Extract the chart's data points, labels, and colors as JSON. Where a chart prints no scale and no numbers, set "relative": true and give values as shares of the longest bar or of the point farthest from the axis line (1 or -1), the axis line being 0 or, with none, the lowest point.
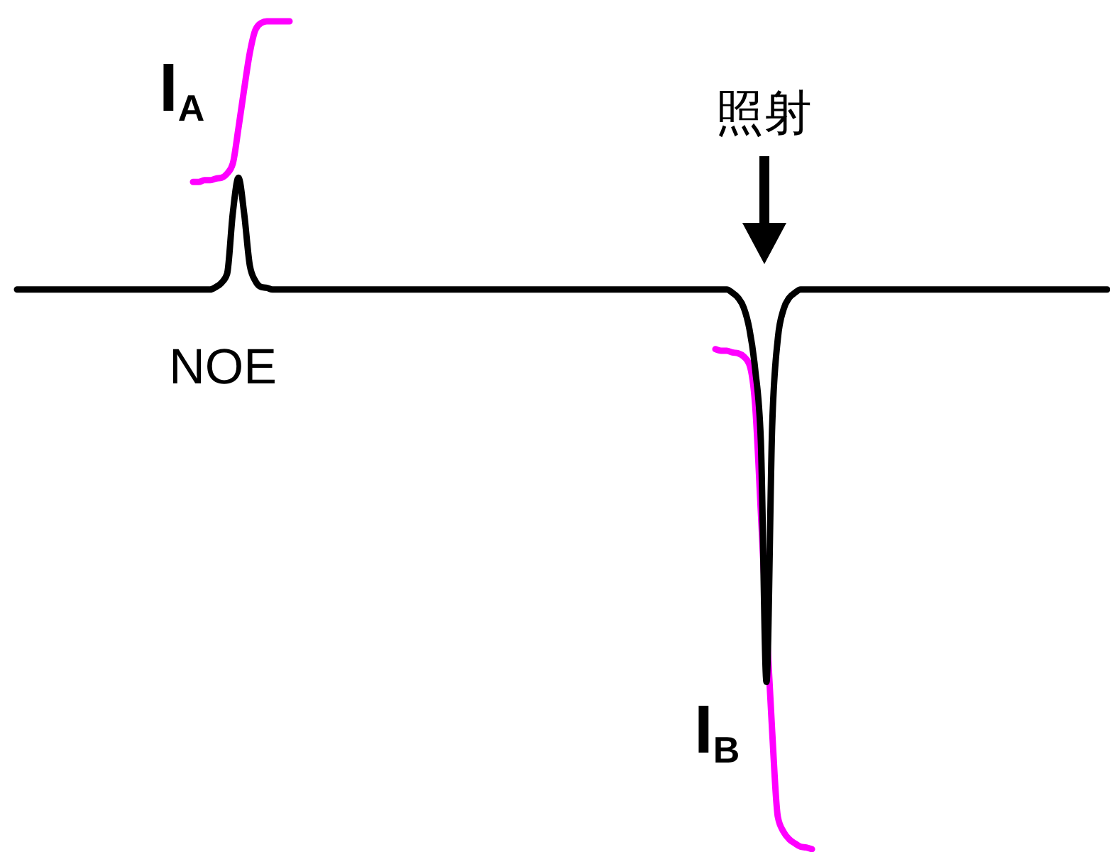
{
  "chart_data": {
    "type": "line",
    "relative": true,
    "categories": [
      null,
      null,
      null,
      null,
      null,
      null,
      null,
      null,
      null,
      null,
      null,
      null,
      null,
      null,
      null,
      null,
      null,
      null,
      null,
      null,
      null,
      null,
      null,
      null,
      null,
      null,
      null,
      null,
      null,
      null,
      null,
      null,
      null,
      null,
      null,
      null,
      null,
      null,
      null,
      null,
      null,
      null,
      null,
      null,
      null,
      null,
      null,
      null,
      null,
      null,
      null,
      null,
      null,
      null,
      null,
      null,
      null,
      null,
      null,
      null,
      null,
      null,
      null,
      null,
      null,
      null,
      null,
      null,
      null,
      null,
      null,
      null,
      null,
      null,
      null,
      null,
      null,
      null,
      null,
      null,
      null,
      null,
      null,
      null,
      null,
      null,
      null,
      null,
      null,
      null,
      null,
      null,
      null,
      null,
      null,
      null,
      null,
      null,
      null,
      null,
      null,
      null,
      null,
      null,
      null,
      null,
      null,
      null,
      null,
      null,
      null,
      null,
      null,
      null,
      null,
      null,
      null,
      null,
      null,
      null,
      null,
      null,
      null,
      null,
      null,
      null,
      null,
      null,
      null,
      null,
      null,
      null,
      null,
      null,
      null,
      null,
      null,
      null,
      null,
      null,
      null,
      null,
      null,
      null,
      null,
      null,
      null,
      null,
      null,
      null,
      null,
      null,
      null,
      null,
      null,
      null,
      null,
      null,
      null,
      null,
      null,
      null,
      null,
      null,
      null,
      null,
      null,
      null,
      null,
      null,
      null,
      null,
      null,
      null,
      null,
      null,
      null,
      null,
      null,
      null,
      null,
      null,
      null,
      null,
      null,
      null,
      null,
      null,
      null,
      null,
      null,
      null,
      null
    ],
    "series": [
      {
        "color": "#000000",
        "values": [
          0.676,
          0.676,
          0.676,
          0.676,
          0.676,
          0.676,
          0.676,
          0.676,
          0.676,
          0.676,
          0.676,
          0.676,
          0.676,
          0.676,
          0.676,
          0.676,
          0.676,
          0.676,
          0.676,
          0.676,
          0.676,
          0.676,
          0.676,
          0.676,
          0.676,
          0.676,
          0.676,
          0.676,
          0.676,
          0.676,
          0.676,
          0.676,
          0.676,
          0.676,
          0.676,
          0.679,
          0.684,
          0.695,
          0.768,
          0.811,
          0.768,
          0.705,
          0.686,
          0.679,
          0.678,
          0.676,
          0.676,
          0.676,
          0.676,
          0.676,
          0.676,
          0.676,
          0.676,
          0.676,
          0.676,
          0.676,
          0.676,
          0.676,
          0.676,
          0.676,
          0.676,
          0.676,
          0.676,
          0.676,
          0.676,
          0.676,
          0.676,
          0.676,
          0.676,
          0.676,
          0.676,
          0.676,
          0.676,
          0.676,
          0.676,
          0.676,
          0.676,
          0.676,
          0.676,
          0.676,
          0.676,
          0.676,
          0.676,
          0.676,
          0.676,
          0.676,
          0.676,
          0.676,
          0.676,
          0.676,
          0.676,
          0.676,
          0.676,
          0.676,
          0.676,
          0.676,
          0.676,
          0.676,
          0.676,
          0.676,
          0.676,
          0.676,
          0.676,
          0.676,
          0.676,
          0.676,
          0.676,
          0.676,
          0.676,
          0.676,
          0.676,
          0.676,
          0.676,
          0.676,
          0.676,
          0.676,
          0.676,
          0.676,
          0.676,
          0.676,
          0.676,
          0.676,
          0.676,
          0.676,
          0.676,
          0.676,
          0.672,
          0.666,
          0.654,
          0.628,
          0.58,
          0.494,
          0.202,
          0.511,
          0.617,
          0.652,
          0.666,
          0.672,
          0.676,
          0.676,
          0.676,
          0.676,
          0.676,
          0.676,
          0.676,
          0.676,
          0.676,
          0.676,
          0.676,
          0.676,
          0.676,
          0.676,
          0.676,
          0.676,
          0.676,
          0.676,
          0.676,
          0.676,
          0.676,
          0.676,
          0.676,
          0.676,
          0.676,
          0.676,
          0.676,
          0.676,
          0.676,
          0.676,
          0.676,
          0.676,
          0.676,
          0.676,
          0.676,
          0.676,
          0.676,
          0.676,
          0.676,
          0.676,
          0.676,
          0.676,
          0.676,
          0.676,
          0.676,
          0.676,
          0.676,
          0.676,
          0.676,
          0.676,
          0.676,
          0.676,
          0.676,
          0.676,
          0.676
        ]
      },
      {
        "color": "#ff00ff",
        "values": [
          null,
          null,
          null,
          null,
          null,
          null,
          null,
          null,
          null,
          null,
          null,
          null,
          null,
          null,
          null,
          null,
          null,
          null,
          null,
          null,
          null,
          null,
          null,
          null,
          null,
          null,
          null,
          null,
          null,
          null,
          null,
          0.806,
          0.806,
          0.808,
          0.808,
          0.81,
          0.811,
          0.816,
          0.828,
          0.871,
          0.918,
          0.962,
          0.99,
          0.998,
          1,
          1,
          1,
          1,
          1,
          null,
          null,
          null,
          null,
          null,
          null,
          null,
          null,
          null,
          null,
          null,
          null,
          null,
          null,
          null,
          null,
          null,
          null,
          null,
          null,
          null,
          null,
          null,
          null,
          null,
          null,
          null,
          null,
          null,
          null,
          null,
          null,
          null,
          null,
          null,
          null,
          null,
          null,
          null,
          null,
          null,
          null,
          null,
          null,
          null,
          null,
          null,
          null,
          null,
          null,
          null,
          null,
          null,
          null,
          null,
          null,
          null,
          null,
          null,
          null,
          null,
          null,
          null,
          null,
          null,
          null,
          null,
          null,
          null,
          null,
          null,
          null,
          null,
          null,
          null,
          null,
          null,
          null,
          null,
          null,
          null,
          null,
          null,
          null,
          null,
          null,
          null,
          null,
          null,
          null,
          null,
          null,
          null,
          null,
          null,
          null,
          null,
          null,
          null,
          null,
          null,
          null,
          null,
          null,
          null,
          null,
          null,
          null,
          null,
          null,
          null,
          null,
          null,
          null,
          null,
          null,
          null,
          null,
          null,
          null,
          null,
          null,
          null,
          null,
          null,
          null,
          null,
          null,
          null,
          null,
          null,
          null,
          null,
          null,
          null,
          null,
          null,
          null,
          null,
          null,
          null,
          null,
          null,
          null
        ]
      },
      {
        "color": "#ff00ff",
        "values": [
          null,
          null,
          null,
          null,
          null,
          null,
          null,
          null,
          null,
          null,
          null,
          null,
          null,
          null,
          null,
          null,
          null,
          null,
          null,
          null,
          null,
          null,
          null,
          null,
          null,
          null,
          null,
          null,
          null,
          null,
          null,
          null,
          null,
          null,
          null,
          null,
          null,
          null,
          null,
          null,
          null,
          null,
          null,
          null,
          null,
          null,
          null,
          null,
          null,
          null,
          null,
          null,
          null,
          null,
          null,
          null,
          null,
          null,
          null,
          null,
          null,
          null,
          null,
          null,
          null,
          null,
          null,
          null,
          null,
          null,
          null,
          null,
          null,
          null,
          null,
          null,
          null,
          null,
          null,
          null,
          null,
          null,
          null,
          null,
          null,
          null,
          null,
          null,
          null,
          null,
          null,
          null,
          null,
          null,
          null,
          null,
          null,
          null,
          null,
          null,
          null,
          null,
          null,
          null,
          null,
          null,
          null,
          null,
          null,
          null,
          null,
          null,
          null,
          null,
          null,
          null,
          null,
          null,
          null,
          null,
          null,
          null,
          null,
          0.604,
          0.602,
          0.602,
          0.6,
          0.599,
          0.595,
          0.585,
          0.537,
          0.408,
          0.271,
          0.142,
          0.039,
          0.021,
          0.012,
          0.007,
          0.003,
          0.002,
          0,
          null,
          null,
          null,
          null,
          null,
          null,
          null,
          null,
          null,
          null,
          null,
          null,
          null,
          null,
          null,
          null,
          null,
          null,
          null,
          null,
          null,
          null,
          null,
          null,
          null,
          null,
          null,
          null,
          null,
          null,
          null,
          null,
          null,
          null,
          null,
          null,
          null,
          null,
          null,
          null,
          null,
          null,
          null,
          null,
          null,
          null,
          null,
          null,
          null,
          null,
          null,
          null
        ]
      }
    ],
    "annotations": [
      "I$_{A}$",
      "照射",
      "NOE",
      "I$_{B}$"
    ]
  }
}
